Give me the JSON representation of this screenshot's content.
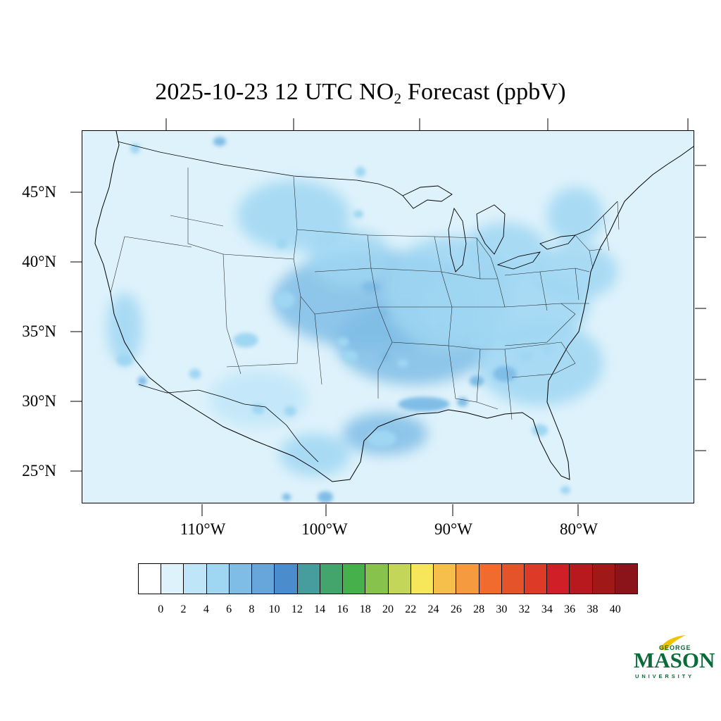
{
  "title": {
    "prefix": "2025-10-23 12 UTC NO",
    "subscript": "2",
    "suffix": " Forecast (ppbV)"
  },
  "lat_labels": [
    "45°N",
    "40°N",
    "35°N",
    "30°N",
    "25°N"
  ],
  "lon_labels": [
    "110°W",
    "100°W",
    "90°W",
    "80°W"
  ],
  "colorbar": {
    "labels": [
      "0",
      "2",
      "4",
      "6",
      "8",
      "10",
      "12",
      "14",
      "16",
      "18",
      "20",
      "22",
      "24",
      "26",
      "28",
      "30",
      "32",
      "34",
      "36",
      "38",
      "40"
    ],
    "colors": [
      "#ffffff",
      "#def2fb",
      "#bfe6f8",
      "#9fd6f2",
      "#80bde6",
      "#66a6da",
      "#4a8ccc",
      "#479d9e",
      "#44a56c",
      "#46b04a",
      "#86c24c",
      "#c4d65a",
      "#f6e65a",
      "#f6bf4c",
      "#f59a3e",
      "#f26b2e",
      "#e5532a",
      "#de3a28",
      "#d01f27",
      "#b7191f",
      "#a01818",
      "#8a1419"
    ]
  },
  "map": {
    "background_color": "#def2fb",
    "hotspot_scale_colors": [
      "#bfe6f8",
      "#9fd6f2",
      "#80bde6",
      "#66a6da",
      "#4a8ccc",
      "#44a56c",
      "#86c24c",
      "#f6e65a",
      "#f59a3e",
      "#de3a28"
    ]
  },
  "logo": {
    "word_main": "MASON",
    "word_top": "GEORGE",
    "word_bottom": "UNIVERSITY"
  }
}
